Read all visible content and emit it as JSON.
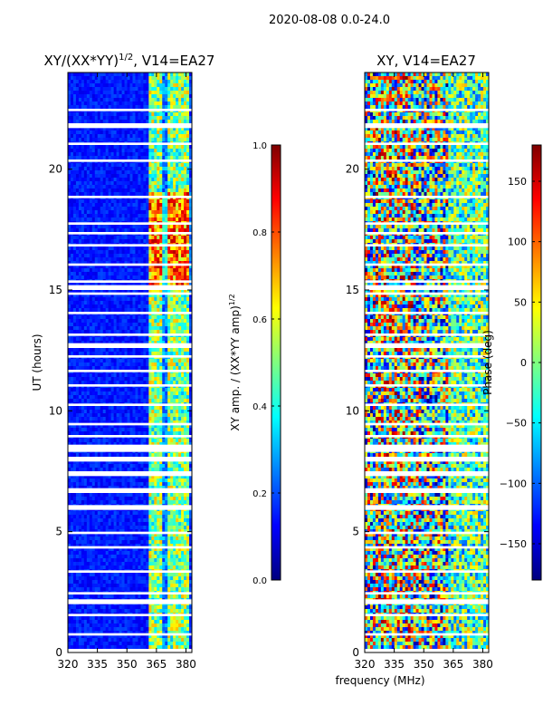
{
  "suptitle": "2020-08-08 0.0-24.0",
  "shared_xlabel": "frequency (MHz)",
  "chart_data": [
    {
      "type": "heatmap",
      "title": "XY/(XX*YY)",
      "title_power": "1/2",
      "title_tail": ", V14=EA27",
      "ylabel": "UT (hours)",
      "xlim": [
        320,
        383
      ],
      "ylim": [
        0,
        24
      ],
      "xticks": [
        320,
        335,
        350,
        365,
        380
      ],
      "yticks": [
        0,
        5,
        10,
        15,
        20
      ],
      "colorbar": {
        "label": "XY amp. / (XX*YY amp)",
        "label_power": "1/2",
        "range": [
          0.0,
          1.0
        ],
        "ticks": [
          "0.0",
          "0.2",
          "0.4",
          "0.6",
          "0.8",
          "1.0"
        ],
        "colormap": "jet"
      },
      "flagged_ut_bands": [
        [
          0.0,
          0.15
        ],
        [
          0.7,
          0.8
        ],
        [
          1.5,
          1.6
        ],
        [
          2.0,
          2.2
        ],
        [
          2.4,
          2.5
        ],
        [
          3.3,
          3.4
        ],
        [
          4.3,
          4.4
        ],
        [
          4.9,
          5.0
        ],
        [
          5.9,
          6.1
        ],
        [
          6.6,
          6.8
        ],
        [
          7.3,
          7.5
        ],
        [
          7.9,
          8.1
        ],
        [
          8.3,
          8.6
        ],
        [
          8.9,
          9.0
        ],
        [
          9.4,
          9.5
        ],
        [
          10.2,
          10.3
        ],
        [
          11.0,
          11.1
        ],
        [
          11.6,
          11.7
        ],
        [
          12.2,
          12.3
        ],
        [
          12.6,
          12.8
        ],
        [
          13.1,
          13.2
        ],
        [
          14.0,
          14.1
        ],
        [
          14.8,
          14.9
        ],
        [
          15.0,
          15.2
        ],
        [
          15.3,
          15.4
        ],
        [
          16.0,
          16.1
        ],
        [
          16.8,
          16.9
        ],
        [
          17.3,
          17.4
        ],
        [
          17.7,
          17.8
        ],
        [
          18.8,
          18.9
        ],
        [
          20.3,
          20.4
        ],
        [
          21.0,
          21.1
        ],
        [
          21.7,
          21.9
        ],
        [
          22.4,
          22.5
        ]
      ],
      "colormap_stops": [
        "#00007f",
        "#0000ff",
        "#007fff",
        "#00ffff",
        "#7fff7f",
        "#ffff00",
        "#ff7f00",
        "#ff0000",
        "#7f0000"
      ]
    },
    {
      "type": "heatmap",
      "title": "XY, V14=EA27",
      "ylabel": "",
      "xlim": [
        320,
        383
      ],
      "ylim": [
        0,
        24
      ],
      "xticks": [
        320,
        335,
        350,
        365,
        380
      ],
      "yticks": [
        0,
        5,
        10,
        15,
        20
      ],
      "colorbar": {
        "label": "Phase (deg)",
        "range": [
          -180,
          180
        ],
        "ticks": [
          "−150",
          "−100",
          "−50",
          "0",
          "50",
          "100",
          "150"
        ],
        "colormap": "jet"
      },
      "flagged_ut_bands": [
        [
          0.0,
          0.15
        ],
        [
          0.7,
          0.8
        ],
        [
          1.5,
          1.6
        ],
        [
          2.0,
          2.2
        ],
        [
          2.4,
          2.5
        ],
        [
          3.3,
          3.4
        ],
        [
          4.3,
          4.4
        ],
        [
          4.9,
          5.0
        ],
        [
          5.9,
          6.1
        ],
        [
          6.6,
          6.8
        ],
        [
          7.3,
          7.5
        ],
        [
          7.9,
          8.1
        ],
        [
          8.3,
          8.6
        ],
        [
          8.9,
          9.0
        ],
        [
          9.4,
          9.5
        ],
        [
          10.2,
          10.3
        ],
        [
          11.0,
          11.1
        ],
        [
          11.6,
          11.7
        ],
        [
          12.2,
          12.3
        ],
        [
          12.6,
          12.8
        ],
        [
          13.1,
          13.2
        ],
        [
          14.0,
          14.1
        ],
        [
          14.8,
          14.9
        ],
        [
          15.0,
          15.2
        ],
        [
          15.3,
          15.4
        ],
        [
          16.0,
          16.1
        ],
        [
          16.8,
          16.9
        ],
        [
          17.3,
          17.4
        ],
        [
          17.7,
          17.8
        ],
        [
          18.8,
          18.9
        ],
        [
          20.3,
          20.4
        ],
        [
          21.0,
          21.1
        ],
        [
          21.7,
          21.9
        ],
        [
          22.4,
          22.5
        ]
      ]
    }
  ]
}
